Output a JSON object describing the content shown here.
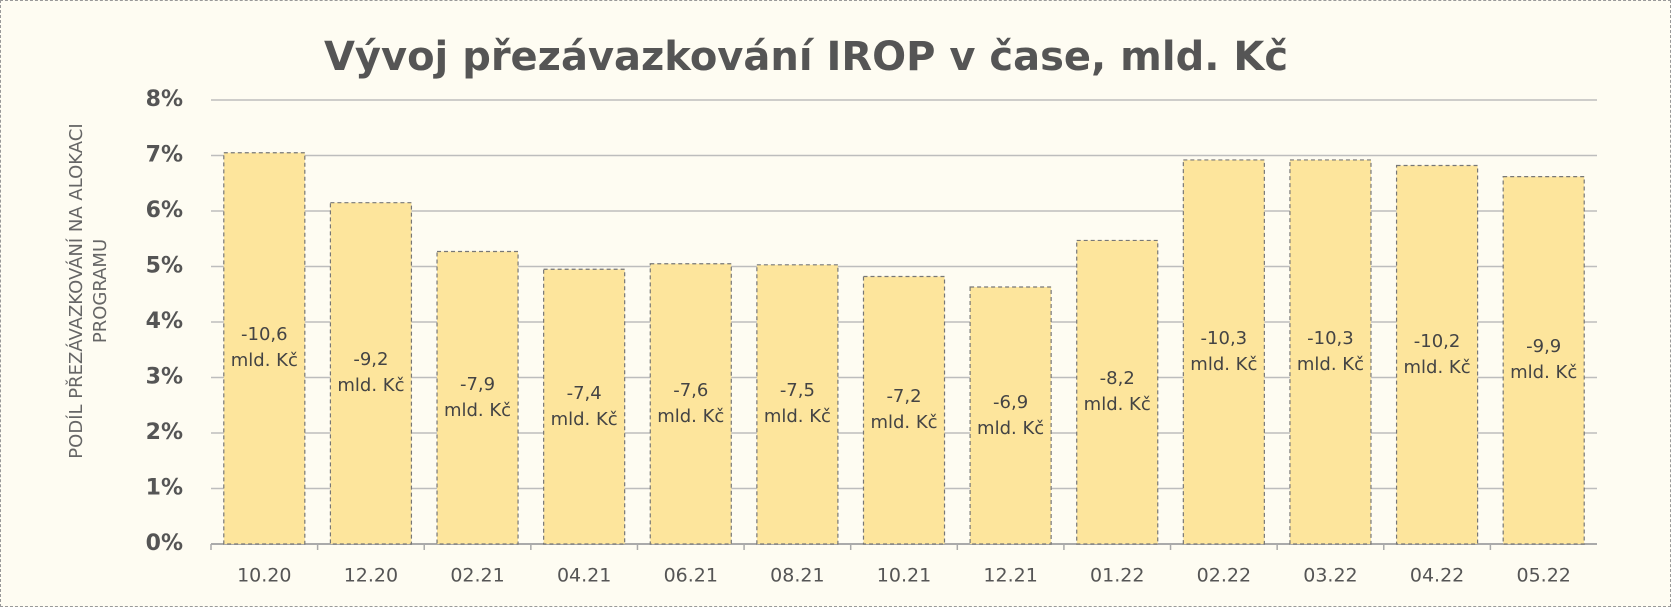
{
  "chart_data": {
    "type": "bar",
    "title": "Vývoj přezávazkování IROP v čase, mld. Kč",
    "y_label": "PODÍL PŘEZÁVAZKOVÁNÍ NA ALOKACI\nPROGRAMU",
    "categories": [
      "10.20",
      "12.20",
      "02.21",
      "04.21",
      "06.21",
      "08.21",
      "10.21",
      "12.21",
      "01.22",
      "02.22",
      "03.22",
      "04.22",
      "05.22"
    ],
    "values": [
      7.05,
      6.15,
      5.27,
      4.95,
      5.05,
      5.03,
      4.82,
      4.63,
      5.47,
      6.92,
      6.92,
      6.82,
      6.62
    ],
    "bar_labels": [
      "-10,6\nmld. Kč",
      "-9,2\nmld. Kč",
      "-7,9\nmld. Kč",
      "-7,4\nmld. Kč",
      "-7,6\nmld. Kč",
      "-7,5\nmld. Kč",
      "-7,2\nmld. Kč",
      "-6,9\nmld. Kč",
      "-8,2\nmld. Kč",
      "-10,3\nmld. Kč",
      "-10,3\nmld. Kč",
      "-10,2\nmld. Kč",
      "-9,9\nmld. Kč"
    ],
    "color": "#fde59c",
    "ylim": [
      0,
      8
    ],
    "yticks": [
      {
        "value": 0,
        "label": "0%"
      },
      {
        "value": 1,
        "label": "1%"
      },
      {
        "value": 2,
        "label": "2%"
      },
      {
        "value": 3,
        "label": "3%"
      },
      {
        "value": 4,
        "label": "4%"
      },
      {
        "value": 5,
        "label": "5%"
      },
      {
        "value": 6,
        "label": "6%"
      },
      {
        "value": 7,
        "label": "7%"
      },
      {
        "value": 8,
        "label": "8%"
      }
    ],
    "grid": true
  }
}
